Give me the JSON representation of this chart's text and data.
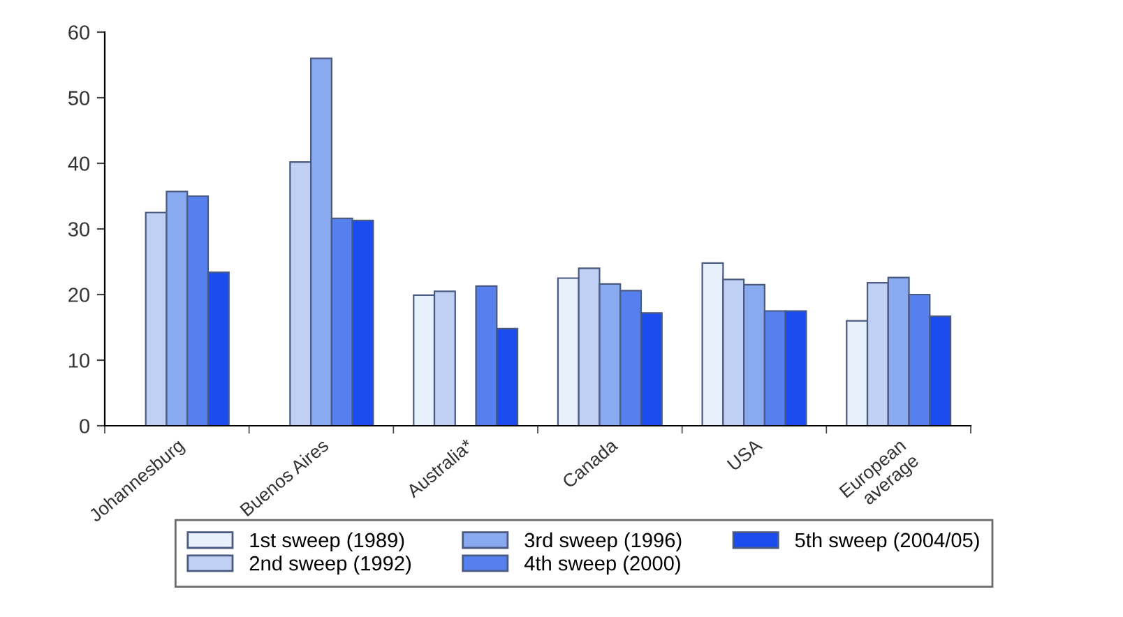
{
  "chart_data": {
    "type": "bar",
    "categories": [
      "Johannesburg",
      "Buenos Aires",
      "Australia*",
      "Canada",
      "USA",
      "European\naverage"
    ],
    "series": [
      {
        "name": "1st sweep (1989)",
        "color": "#e8f0fb",
        "values": [
          null,
          null,
          19.9,
          22.5,
          24.8,
          16.0
        ]
      },
      {
        "name": "2nd sweep (1992)",
        "color": "#c0d0f5",
        "values": [
          32.5,
          40.2,
          20.5,
          24.0,
          22.3,
          21.8
        ]
      },
      {
        "name": "3rd sweep (1996)",
        "color": "#8aaaf0",
        "values": [
          35.7,
          56.0,
          null,
          21.6,
          21.5,
          22.6
        ]
      },
      {
        "name": "4th sweep (2000)",
        "color": "#5580ee",
        "values": [
          35.0,
          31.6,
          21.3,
          20.6,
          17.5,
          20.0
        ]
      },
      {
        "name": "5th sweep (2004/05)",
        "color": "#1a4cf0",
        "values": [
          23.4,
          31.3,
          14.8,
          17.2,
          17.5,
          16.7
        ]
      }
    ],
    "ylim": [
      0,
      60
    ],
    "yticks": [
      0,
      10,
      20,
      30,
      40,
      50,
      60
    ],
    "grid": false,
    "legend": "bottom"
  }
}
